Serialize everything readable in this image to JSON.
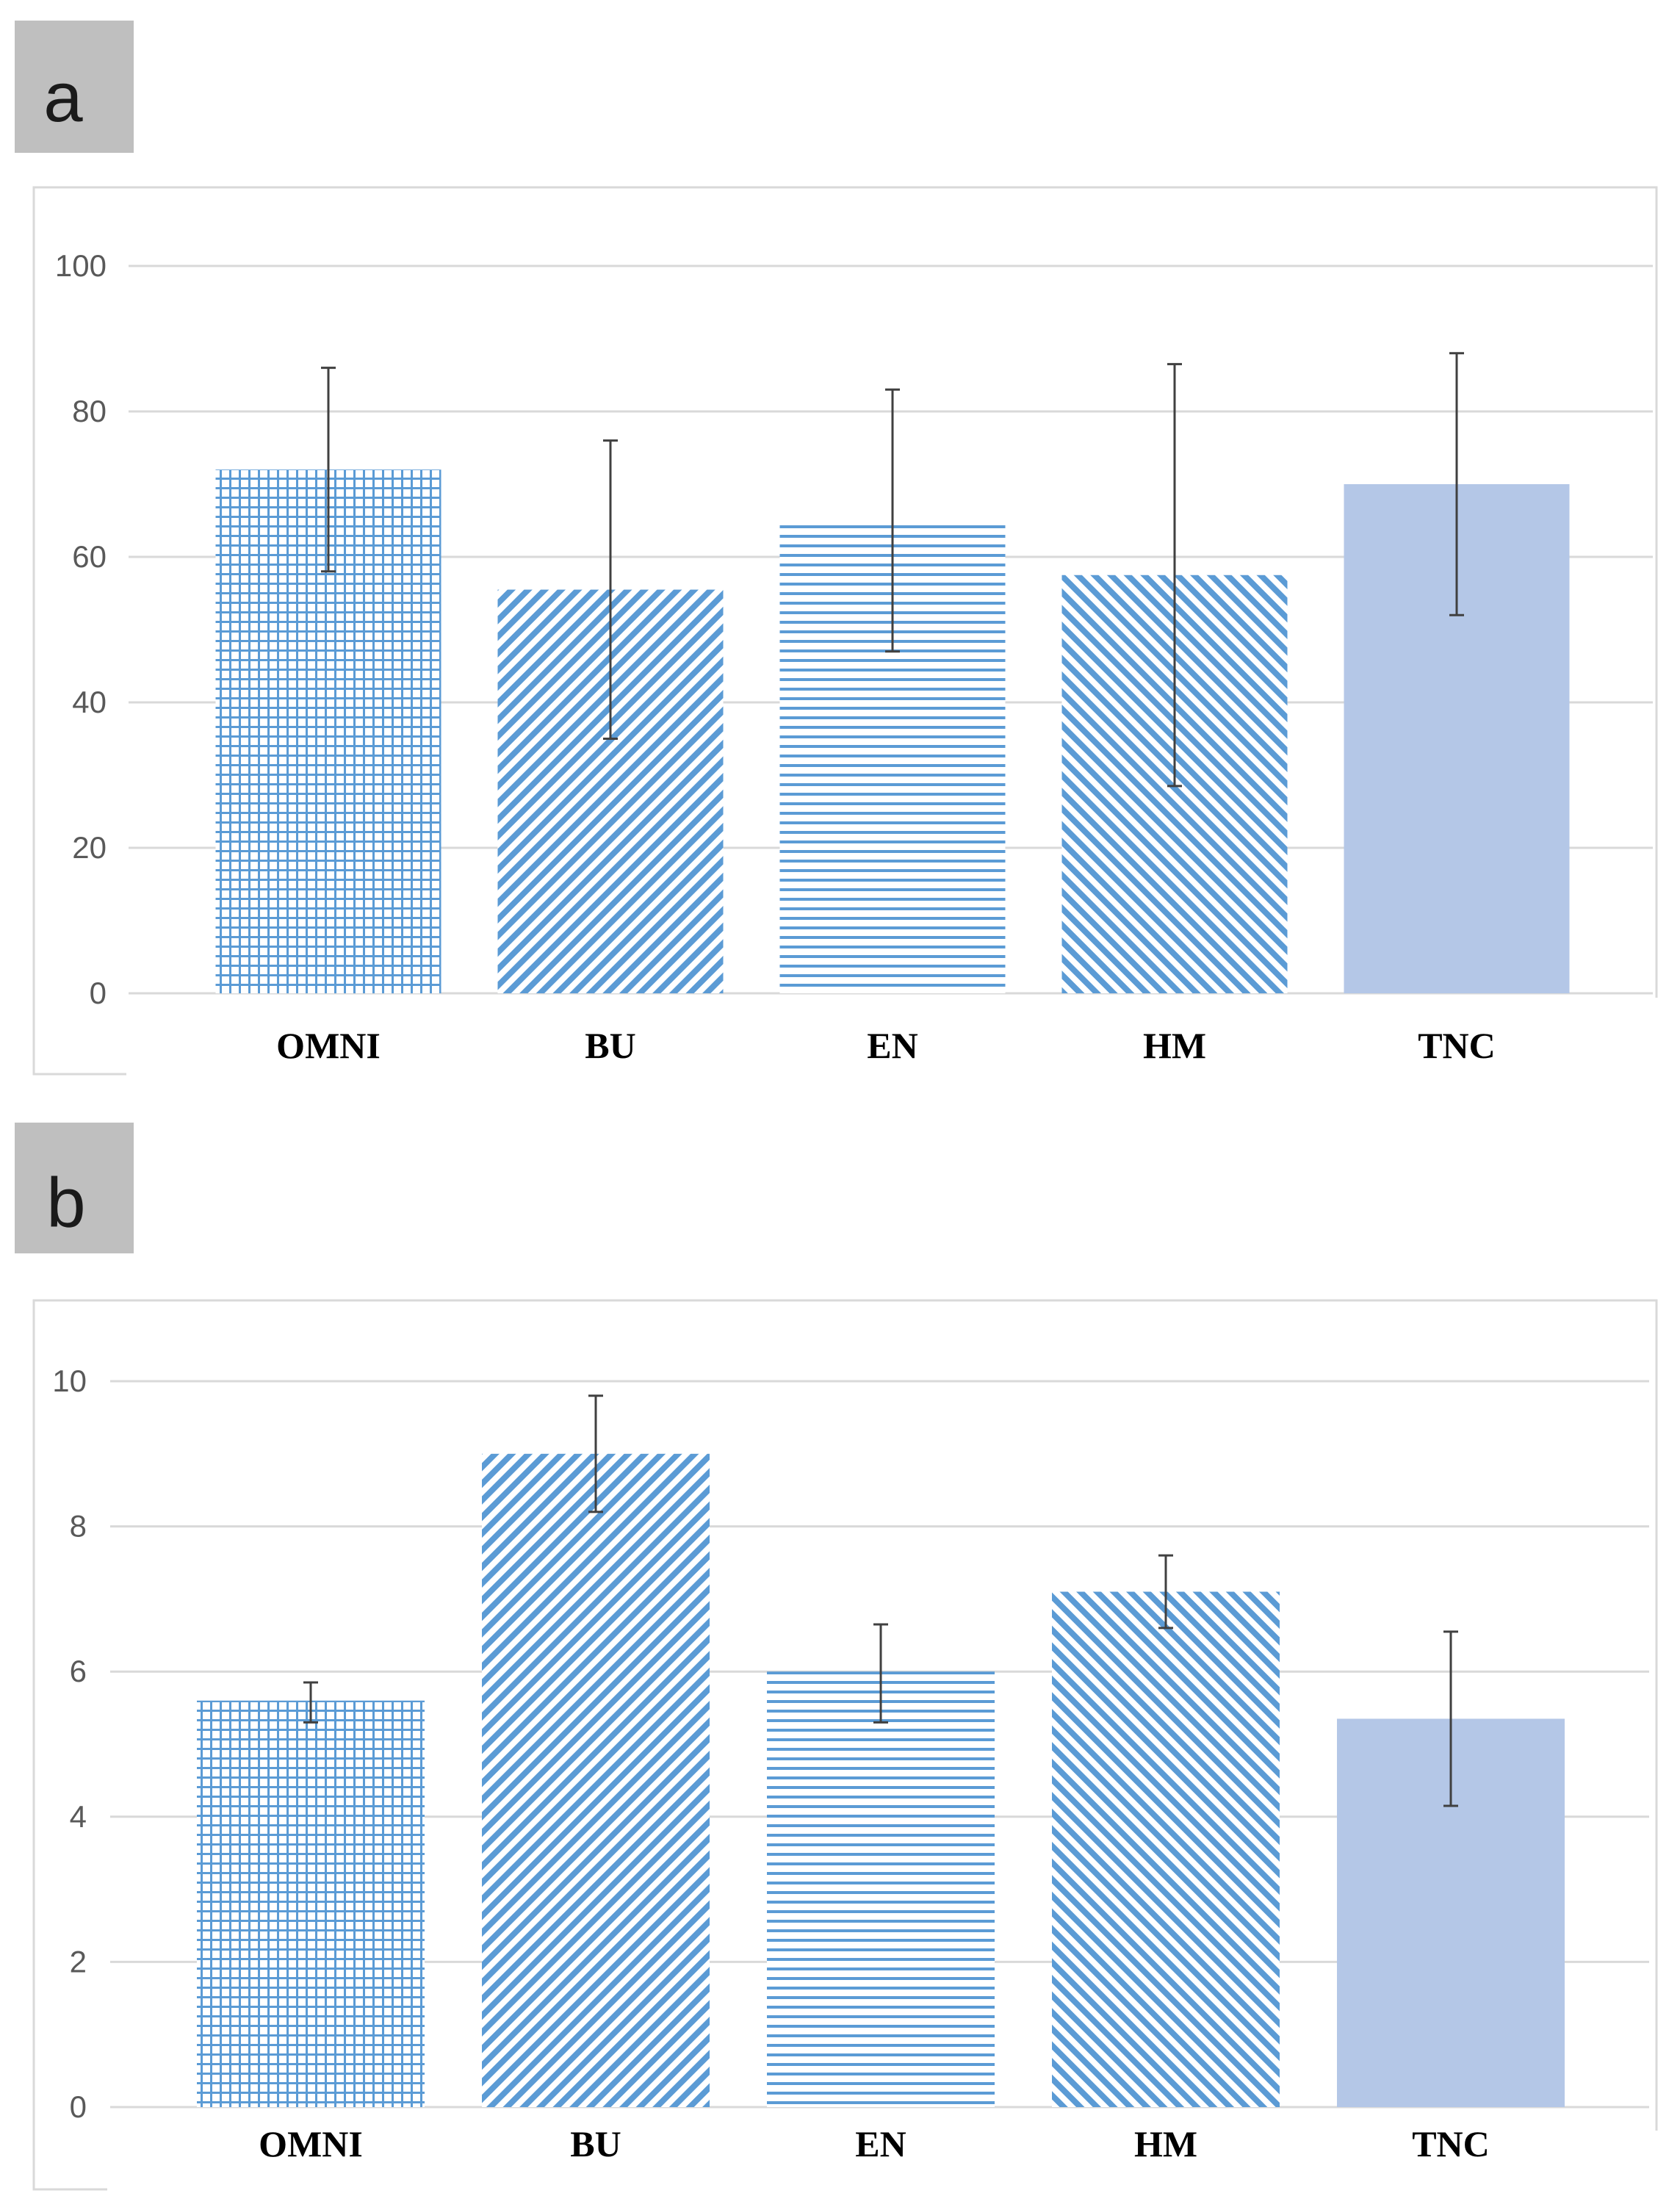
{
  "panels": [
    {
      "label": "a"
    },
    {
      "label": "b"
    }
  ],
  "colors": {
    "bar_pattern": "#5b9bd5",
    "bar_solid": "#b4c7e7",
    "grid": "#d9d9d9",
    "error_bar": "#404040",
    "panel_label_bg": "#bfbfbf",
    "frame": "#d9d9d9"
  },
  "chart_data": [
    {
      "type": "bar",
      "title": "",
      "xlabel": "",
      "ylabel": "",
      "categories": [
        "OMNI",
        "BU",
        "EN",
        "HM",
        "TNC"
      ],
      "values": [
        72,
        55.5,
        65,
        57.5,
        70
      ],
      "error_low": [
        58,
        35,
        47,
        28.5,
        52
      ],
      "error_high": [
        86,
        76,
        83,
        86.5,
        88
      ],
      "patterns": [
        "grid",
        "diagonal-down",
        "horizontal",
        "diagonal-up",
        "solid"
      ],
      "ylim": [
        0,
        100
      ],
      "yticks": [
        0,
        20,
        40,
        60,
        80,
        100
      ],
      "grid": true,
      "legend": "none"
    },
    {
      "type": "bar",
      "title": "",
      "xlabel": "",
      "ylabel": "",
      "categories": [
        "OMNI",
        "BU",
        "EN",
        "HM",
        "TNC"
      ],
      "values": [
        5.6,
        9.0,
        6.0,
        7.1,
        5.35
      ],
      "error_low": [
        5.3,
        8.2,
        5.3,
        6.6,
        4.15
      ],
      "error_high": [
        5.85,
        9.8,
        6.65,
        7.6,
        6.55
      ],
      "patterns": [
        "grid",
        "diagonal-down",
        "horizontal",
        "diagonal-up",
        "solid"
      ],
      "ylim": [
        0,
        10
      ],
      "yticks": [
        0,
        2,
        4,
        6,
        8,
        10
      ],
      "grid": true,
      "legend": "none"
    }
  ]
}
